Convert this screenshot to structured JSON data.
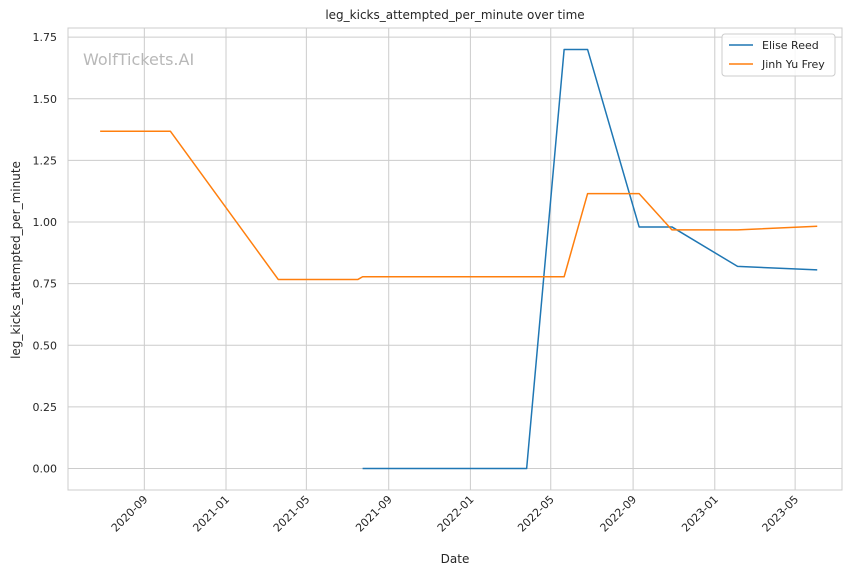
{
  "chart_data": {
    "type": "line",
    "title": "leg_kicks_attempted_per_minute over time",
    "xlabel": "Date",
    "ylabel": "leg_kicks_attempted_per_minute",
    "watermark": "WolfTickets.AI",
    "x_axis_type": "date",
    "xlim": [
      "2020-05-10",
      "2023-07-10"
    ],
    "ylim": [
      -0.087,
      1.787
    ],
    "x_ticks": [
      "2020-09",
      "2021-01",
      "2021-05",
      "2021-09",
      "2022-01",
      "2022-05",
      "2022-09",
      "2023-01",
      "2023-05"
    ],
    "y_ticks": [
      "0.00",
      "0.25",
      "0.50",
      "0.75",
      "1.00",
      "1.25",
      "1.50",
      "1.75"
    ],
    "grid": true,
    "legend_position": "top-right",
    "series": [
      {
        "name": "Elise Reed",
        "color": "#1f77b4",
        "points": [
          {
            "x": "2021-07-24",
            "y": 0.0
          },
          {
            "x": "2022-03-26",
            "y": 0.0
          },
          {
            "x": "2022-05-21",
            "y": 1.7
          },
          {
            "x": "2022-06-25",
            "y": 1.7
          },
          {
            "x": "2022-09-10",
            "y": 0.98
          },
          {
            "x": "2022-10-29",
            "y": 0.98
          },
          {
            "x": "2023-02-04",
            "y": 0.82
          },
          {
            "x": "2023-06-03",
            "y": 0.806
          }
        ]
      },
      {
        "name": "Jinh Yu Frey",
        "color": "#ff7f0e",
        "points": [
          {
            "x": "2020-06-27",
            "y": 1.368
          },
          {
            "x": "2020-10-10",
            "y": 1.368
          },
          {
            "x": "2021-03-20",
            "y": 0.767
          },
          {
            "x": "2021-07-17",
            "y": 0.767
          },
          {
            "x": "2021-07-24",
            "y": 0.778
          },
          {
            "x": "2022-05-21",
            "y": 0.778
          },
          {
            "x": "2022-06-25",
            "y": 1.115
          },
          {
            "x": "2022-09-10",
            "y": 1.115
          },
          {
            "x": "2022-10-29",
            "y": 0.968
          },
          {
            "x": "2023-02-04",
            "y": 0.968
          },
          {
            "x": "2023-06-03",
            "y": 0.983
          }
        ]
      }
    ]
  }
}
